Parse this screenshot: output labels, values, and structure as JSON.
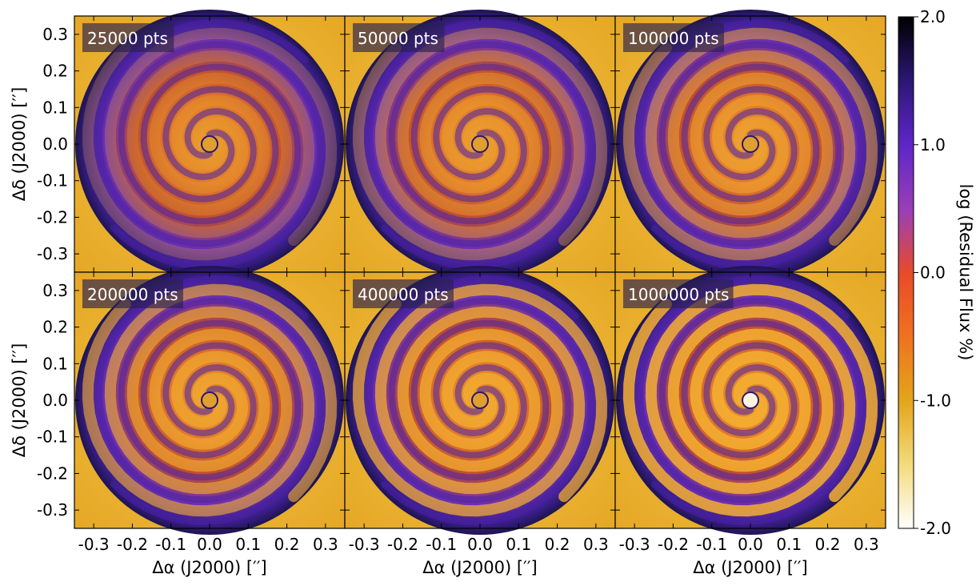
{
  "chart_data": {
    "type": "heatmap",
    "panels": [
      {
        "label": "25000 pts"
      },
      {
        "label": "50000 pts"
      },
      {
        "label": "100000 pts"
      },
      {
        "label": "200000 pts"
      },
      {
        "label": "400000 pts"
      },
      {
        "label": "1000000 pts"
      }
    ],
    "xlabel": "Δα (J2000) [′′]",
    "ylabel": "Δδ (J2000) [′′]",
    "xlim": [
      -0.35,
      0.35
    ],
    "ylim": [
      -0.35,
      0.35
    ],
    "x_ticks": [
      "-0.3",
      "-0.2",
      "-0.1",
      "0.0",
      "0.1",
      "0.2",
      "0.3"
    ],
    "y_ticks": [
      "0.3",
      "0.2",
      "0.1",
      "0.0",
      "-0.1",
      "-0.2",
      "-0.3"
    ],
    "colorbar": {
      "label": "log (Residual Flux %)",
      "min": -2.0,
      "max": 2.0,
      "ticks": [
        "2.0",
        "1.0",
        "0.0",
        "-1.0",
        "-2.0"
      ],
      "colormap": [
        "#ffffff",
        "#f3dd80",
        "#e3a51a",
        "#f07020",
        "#e84a2a",
        "#9b3fb5",
        "#5e26c8",
        "#2a1670",
        "#000000"
      ]
    }
  }
}
